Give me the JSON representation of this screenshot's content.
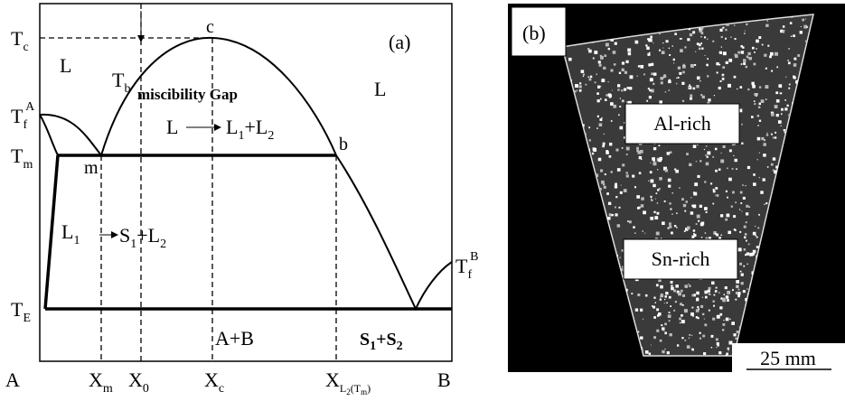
{
  "panel_a": {
    "label": "(a)",
    "y_labels": {
      "tc": {
        "base": "T",
        "sub": "c"
      },
      "tfa": {
        "base": "T",
        "sub": "f",
        "sup": "A"
      },
      "tm": {
        "base": "T",
        "sub": "m"
      },
      "te": {
        "base": "T",
        "sub": "E"
      }
    },
    "x_labels": {
      "a": "A",
      "xm": {
        "base": "X",
        "sub": "m"
      },
      "x0": {
        "base": "X",
        "sub": "0"
      },
      "xc": {
        "base": "X",
        "sub": "c"
      },
      "xl2": {
        "base": "X",
        "sub_parts": [
          "L",
          "2",
          "(T",
          "m",
          ")"
        ]
      },
      "b": "B"
    },
    "points": {
      "c": "c",
      "m": "m",
      "b": "b"
    },
    "tb": {
      "base": "T",
      "sub": "b"
    },
    "tfb": {
      "base": "T",
      "sub": "f",
      "sup": "B"
    },
    "regions": {
      "l_left": "L",
      "l_right": "L",
      "gap": "miscibility Gap",
      "l1": {
        "base": "L",
        "sub": "1"
      },
      "ab": "A+B",
      "s1s2": {
        "parts": [
          "S",
          "1",
          "+S",
          "2"
        ]
      }
    },
    "reaction_1": {
      "from": "L",
      "to": {
        "parts": [
          "L",
          "1",
          "+L",
          "2"
        ]
      }
    },
    "reaction_2": {
      "to": {
        "parts": [
          "S",
          "1",
          "+L",
          "2"
        ]
      }
    }
  },
  "panel_b": {
    "label": "(b)",
    "al_rich": "Al-rich",
    "sn_rich": "Sn-rich",
    "scale_bar": "25 mm"
  }
}
